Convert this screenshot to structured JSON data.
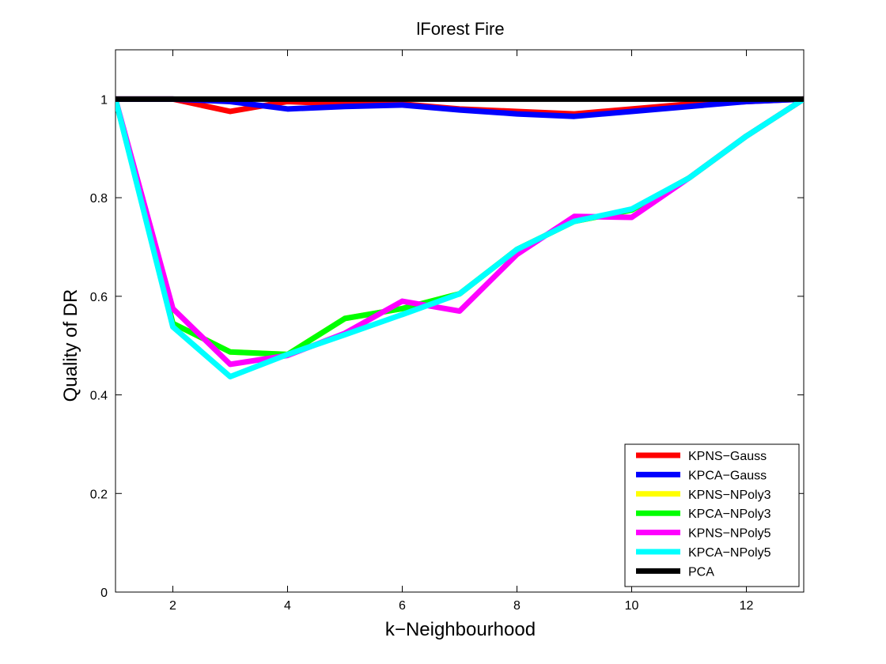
{
  "chart_data": {
    "type": "line",
    "title": "lForest Fire",
    "xlabel": "k−Neighbourhood",
    "ylabel": "Quality of DR",
    "xlim": [
      1,
      13
    ],
    "ylim": [
      0,
      1.1
    ],
    "xticks": [
      2,
      4,
      6,
      8,
      10,
      12
    ],
    "yticks": [
      0,
      0.2,
      0.4,
      0.6,
      0.8,
      1
    ],
    "ytick_labels": [
      "0",
      "0.2",
      "0.4",
      "0.6",
      "0.8",
      "1"
    ],
    "grid": false,
    "legend_position": "bottom-right",
    "x": [
      1,
      2,
      3,
      4,
      5,
      6,
      7,
      8,
      9,
      10,
      11,
      12,
      13
    ],
    "series": [
      {
        "name": "KPNS−Gauss",
        "color": "#ff0000",
        "values": [
          1.0,
          1.0,
          0.975,
          0.995,
          0.99,
          0.99,
          0.98,
          0.975,
          0.97,
          0.98,
          0.99,
          0.995,
          1.0
        ]
      },
      {
        "name": "KPCA−Gauss",
        "color": "#0000ff",
        "values": [
          1.0,
          1.0,
          0.995,
          0.98,
          0.985,
          0.988,
          0.978,
          0.97,
          0.965,
          0.975,
          0.985,
          0.995,
          1.0
        ]
      },
      {
        "name": "KPNS−NPoly3",
        "color": "#ffff00",
        "values": [
          1.0,
          0.545,
          0.487,
          0.482,
          0.555,
          0.575,
          0.605,
          0.695,
          0.752,
          0.775,
          0.84,
          0.925,
          1.0
        ]
      },
      {
        "name": "KPCA−NPoly3",
        "color": "#00ff00",
        "values": [
          1.0,
          0.545,
          0.487,
          0.482,
          0.555,
          0.575,
          0.605,
          0.695,
          0.752,
          0.775,
          0.84,
          0.925,
          1.0
        ]
      },
      {
        "name": "KPNS−NPoly5",
        "color": "#ff00ff",
        "values": [
          1.0,
          0.575,
          0.462,
          0.48,
          0.525,
          0.59,
          0.57,
          0.685,
          0.762,
          0.76,
          0.84,
          0.925,
          1.0
        ]
      },
      {
        "name": "KPCA−NPoly5",
        "color": "#00ffff",
        "values": [
          1.0,
          0.538,
          0.437,
          0.482,
          0.522,
          0.563,
          0.605,
          0.695,
          0.752,
          0.777,
          0.84,
          0.925,
          1.0
        ]
      },
      {
        "name": "PCA",
        "color": "#000000",
        "values": [
          1.0,
          1.0,
          1.0,
          1.0,
          1.0,
          1.0,
          1.0,
          1.0,
          1.0,
          1.0,
          1.0,
          1.0,
          1.0
        ]
      }
    ]
  }
}
